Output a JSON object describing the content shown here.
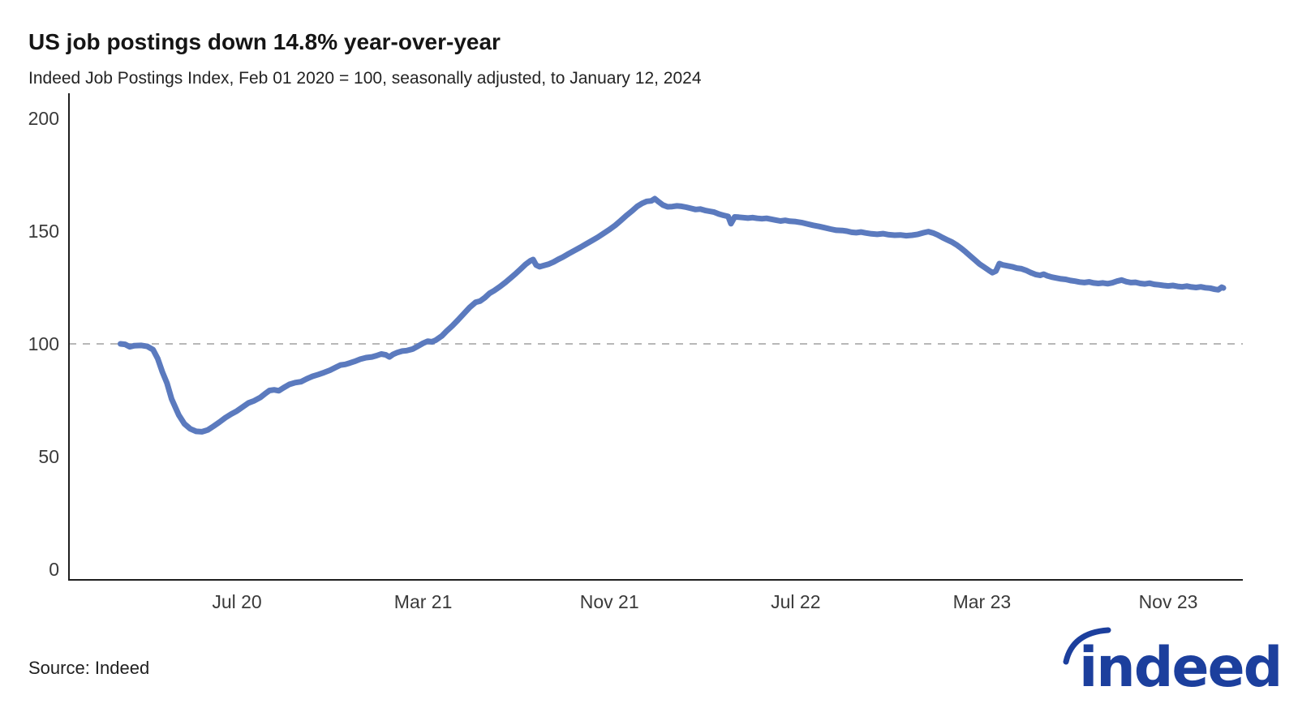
{
  "header": {
    "title": "US job postings down 14.8% year-over-year",
    "subtitle": "Indeed Job Postings Index, Feb 01 2020 = 100, seasonally adjusted, to January 12, 2024"
  },
  "footer": {
    "source": "Source: Indeed",
    "logo_text": "indeed"
  },
  "colors": {
    "line": "#5b7abe",
    "axis": "#1f1f1f",
    "gridline": "#b8b8b8",
    "tick_label": "#3a3a3a",
    "logo_blue": "#1c3f9d"
  },
  "chart_data": {
    "type": "line",
    "title": "US job postings down 14.8% year-over-year",
    "subtitle": "Indeed Job Postings Index, Feb 01 2020 = 100, seasonally adjusted, to January 12, 2024",
    "x_unit": "months since Feb 01 2020",
    "x_range_dates": [
      "Feb 01 2020",
      "Jan 12 2024"
    ],
    "baseline": 100,
    "grid": "single dashed horizontal gridline at y=100 only",
    "legend": "none",
    "ylim": [
      0,
      215
    ],
    "y_ticks": [
      0,
      50,
      100,
      150,
      200
    ],
    "x_ticks": [
      {
        "label": "Jul 20",
        "m": 5
      },
      {
        "label": "Mar 21",
        "m": 13
      },
      {
        "label": "Nov 21",
        "m": 21
      },
      {
        "label": "Jul 22",
        "m": 29
      },
      {
        "label": "Mar 23",
        "m": 37
      },
      {
        "label": "Nov 23",
        "m": 45
      }
    ],
    "series": [
      {
        "name": "Indeed Job Postings Index (US, seasonally adjusted)",
        "points": [
          [
            0,
            100
          ],
          [
            0.2,
            99.8
          ],
          [
            0.4,
            98.7
          ],
          [
            0.6,
            99.2
          ],
          [
            0.9,
            99.3
          ],
          [
            1.15,
            98.9
          ],
          [
            1.4,
            97.4
          ],
          [
            1.6,
            93.5
          ],
          [
            1.8,
            87.5
          ],
          [
            2,
            82.5
          ],
          [
            2.2,
            75.5
          ],
          [
            2.5,
            68.5
          ],
          [
            2.75,
            64.5
          ],
          [
            3,
            62.3
          ],
          [
            3.25,
            61.2
          ],
          [
            3.5,
            61
          ],
          [
            3.75,
            61.8
          ],
          [
            4,
            63.5
          ],
          [
            4.25,
            65.3
          ],
          [
            4.5,
            67.2
          ],
          [
            4.75,
            68.8
          ],
          [
            5,
            70.2
          ],
          [
            5.25,
            72
          ],
          [
            5.5,
            73.8
          ],
          [
            5.75,
            74.8
          ],
          [
            6,
            76.2
          ],
          [
            6.2,
            77.8
          ],
          [
            6.4,
            79.3
          ],
          [
            6.6,
            79.6
          ],
          [
            6.8,
            79.2
          ],
          [
            7,
            80.5
          ],
          [
            7.25,
            82
          ],
          [
            7.5,
            82.8
          ],
          [
            7.75,
            83.2
          ],
          [
            8,
            84.5
          ],
          [
            8.25,
            85.6
          ],
          [
            8.5,
            86.4
          ],
          [
            8.75,
            87.3
          ],
          [
            9,
            88.3
          ],
          [
            9.25,
            89.6
          ],
          [
            9.45,
            90.6
          ],
          [
            9.65,
            90.9
          ],
          [
            9.85,
            91.5
          ],
          [
            10.05,
            92.2
          ],
          [
            10.3,
            93.2
          ],
          [
            10.55,
            93.9
          ],
          [
            10.8,
            94.2
          ],
          [
            11,
            94.8
          ],
          [
            11.2,
            95.5
          ],
          [
            11.4,
            95.1
          ],
          [
            11.55,
            94.2
          ],
          [
            11.7,
            95.3
          ],
          [
            11.9,
            96.2
          ],
          [
            12.1,
            96.8
          ],
          [
            12.3,
            97
          ],
          [
            12.55,
            97.7
          ],
          [
            12.75,
            98.8
          ],
          [
            13,
            100.3
          ],
          [
            13.2,
            101.2
          ],
          [
            13.38,
            100.9
          ],
          [
            13.55,
            101.7
          ],
          [
            13.8,
            103.5
          ],
          [
            14,
            105.6
          ],
          [
            14.25,
            108
          ],
          [
            14.5,
            110.6
          ],
          [
            14.75,
            113.4
          ],
          [
            15,
            116.2
          ],
          [
            15.25,
            118.4
          ],
          [
            15.45,
            119
          ],
          [
            15.65,
            120.5
          ],
          [
            15.85,
            122.4
          ],
          [
            16.05,
            123.6
          ],
          [
            16.3,
            125.4
          ],
          [
            16.55,
            127.4
          ],
          [
            16.8,
            129.6
          ],
          [
            17,
            131.4
          ],
          [
            17.2,
            133.3
          ],
          [
            17.4,
            135.3
          ],
          [
            17.6,
            136.8
          ],
          [
            17.72,
            137.4
          ],
          [
            17.85,
            135
          ],
          [
            18,
            134.2
          ],
          [
            18.2,
            134.8
          ],
          [
            18.4,
            135.4
          ],
          [
            18.6,
            136.3
          ],
          [
            18.8,
            137.5
          ],
          [
            19,
            138.5
          ],
          [
            19.25,
            140
          ],
          [
            19.5,
            141.4
          ],
          [
            19.75,
            142.8
          ],
          [
            20,
            144.3
          ],
          [
            20.25,
            145.8
          ],
          [
            20.5,
            147.3
          ],
          [
            20.75,
            149
          ],
          [
            21,
            150.7
          ],
          [
            21.25,
            152.6
          ],
          [
            21.5,
            154.8
          ],
          [
            21.75,
            157.1
          ],
          [
            22,
            159.2
          ],
          [
            22.2,
            161
          ],
          [
            22.4,
            162.3
          ],
          [
            22.6,
            163.2
          ],
          [
            22.8,
            163.4
          ],
          [
            22.95,
            164.4
          ],
          [
            23.1,
            163.1
          ],
          [
            23.3,
            161.6
          ],
          [
            23.5,
            160.8
          ],
          [
            23.7,
            160.9
          ],
          [
            23.9,
            161.2
          ],
          [
            24.1,
            161
          ],
          [
            24.3,
            160.6
          ],
          [
            24.5,
            160.1
          ],
          [
            24.7,
            159.6
          ],
          [
            24.9,
            159.8
          ],
          [
            25.1,
            159.2
          ],
          [
            25.3,
            158.8
          ],
          [
            25.5,
            158.4
          ],
          [
            25.7,
            157.6
          ],
          [
            25.9,
            157
          ],
          [
            26.1,
            156.5
          ],
          [
            26.22,
            153.3
          ],
          [
            26.38,
            156.3
          ],
          [
            26.55,
            156.2
          ],
          [
            26.75,
            156
          ],
          [
            26.95,
            155.8
          ],
          [
            27.15,
            156
          ],
          [
            27.35,
            155.7
          ],
          [
            27.55,
            155.5
          ],
          [
            27.75,
            155.7
          ],
          [
            27.95,
            155.3
          ],
          [
            28.15,
            154.9
          ],
          [
            28.35,
            154.5
          ],
          [
            28.55,
            154.8
          ],
          [
            28.75,
            154.4
          ],
          [
            29,
            154.2
          ],
          [
            29.25,
            153.8
          ],
          [
            29.5,
            153.2
          ],
          [
            29.75,
            152.6
          ],
          [
            30,
            152.1
          ],
          [
            30.25,
            151.5
          ],
          [
            30.5,
            150.9
          ],
          [
            30.75,
            150.4
          ],
          [
            31,
            150.3
          ],
          [
            31.2,
            150
          ],
          [
            31.4,
            149.5
          ],
          [
            31.6,
            149.3
          ],
          [
            31.8,
            149.6
          ],
          [
            32,
            149.2
          ],
          [
            32.25,
            148.8
          ],
          [
            32.5,
            148.6
          ],
          [
            32.75,
            148.9
          ],
          [
            33,
            148.4
          ],
          [
            33.25,
            148.2
          ],
          [
            33.5,
            148.3
          ],
          [
            33.75,
            148
          ],
          [
            34,
            148.2
          ],
          [
            34.25,
            148.6
          ],
          [
            34.5,
            149.3
          ],
          [
            34.7,
            149.8
          ],
          [
            34.9,
            149.2
          ],
          [
            35.1,
            148.3
          ],
          [
            35.3,
            147.2
          ],
          [
            35.5,
            146.2
          ],
          [
            35.7,
            145.2
          ],
          [
            35.9,
            144
          ],
          [
            36.1,
            142.5
          ],
          [
            36.3,
            140.8
          ],
          [
            36.5,
            139
          ],
          [
            36.7,
            137.2
          ],
          [
            36.9,
            135.4
          ],
          [
            37.1,
            134
          ],
          [
            37.3,
            132.6
          ],
          [
            37.45,
            131.6
          ],
          [
            37.6,
            132.3
          ],
          [
            37.75,
            135.6
          ],
          [
            37.9,
            135
          ],
          [
            38.1,
            134.6
          ],
          [
            38.3,
            134.2
          ],
          [
            38.5,
            133.6
          ],
          [
            38.7,
            133.3
          ],
          [
            38.9,
            132.6
          ],
          [
            39.1,
            131.6
          ],
          [
            39.3,
            130.8
          ],
          [
            39.5,
            130.4
          ],
          [
            39.65,
            130.9
          ],
          [
            39.8,
            130.2
          ],
          [
            40,
            129.6
          ],
          [
            40.2,
            129.2
          ],
          [
            40.4,
            128.8
          ],
          [
            40.6,
            128.6
          ],
          [
            40.8,
            128.1
          ],
          [
            41,
            127.8
          ],
          [
            41.2,
            127.4
          ],
          [
            41.4,
            127.2
          ],
          [
            41.6,
            127.5
          ],
          [
            41.8,
            127
          ],
          [
            42,
            126.8
          ],
          [
            42.2,
            127
          ],
          [
            42.4,
            126.7
          ],
          [
            42.6,
            127.1
          ],
          [
            42.8,
            127.8
          ],
          [
            43,
            128.3
          ],
          [
            43.2,
            127.6
          ],
          [
            43.4,
            127.2
          ],
          [
            43.6,
            127.3
          ],
          [
            43.8,
            126.8
          ],
          [
            44,
            126.6
          ],
          [
            44.2,
            126.9
          ],
          [
            44.4,
            126.4
          ],
          [
            44.6,
            126.2
          ],
          [
            44.8,
            125.9
          ],
          [
            45,
            125.7
          ],
          [
            45.2,
            125.9
          ],
          [
            45.4,
            125.5
          ],
          [
            45.6,
            125.3
          ],
          [
            45.8,
            125.6
          ],
          [
            46,
            125.2
          ],
          [
            46.2,
            125
          ],
          [
            46.4,
            125.3
          ],
          [
            46.6,
            124.9
          ],
          [
            46.8,
            124.7
          ],
          [
            47,
            124.2
          ],
          [
            47.15,
            124
          ],
          [
            47.3,
            125.1
          ],
          [
            47.37,
            124.8
          ]
        ]
      }
    ]
  }
}
